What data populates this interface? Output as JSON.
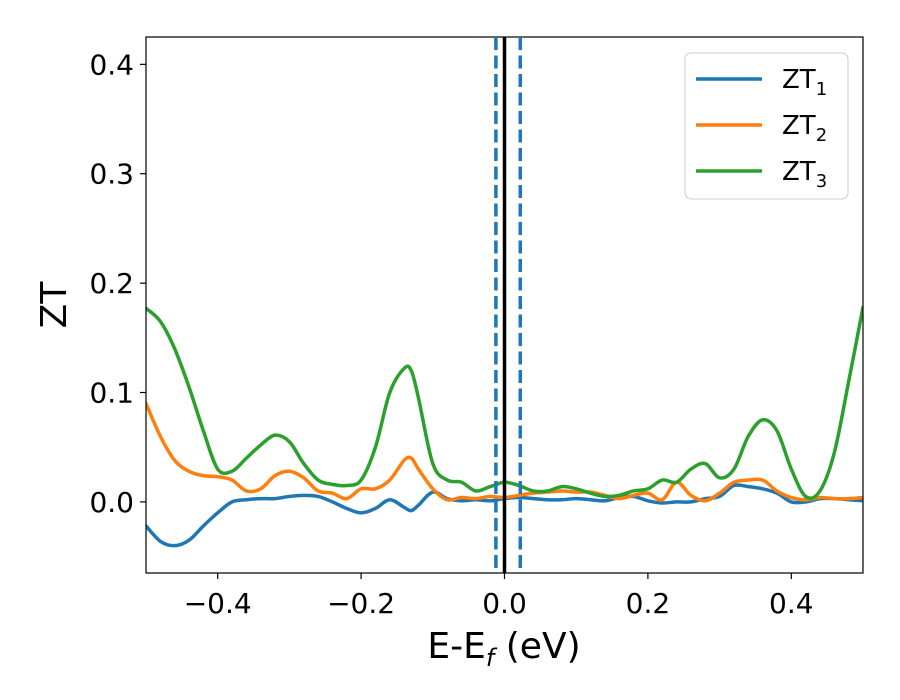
{
  "chart_data": {
    "type": "line",
    "xlabel": "E-E",
    "xlabel_sub": "f",
    "xlabel_unit": " (eV)",
    "ylabel": "ZT",
    "xlim": [
      -0.5,
      0.5
    ],
    "ylim": [
      -0.065,
      0.425
    ],
    "xticks": [
      -0.4,
      -0.2,
      0.0,
      0.2,
      0.4
    ],
    "xtick_labels": [
      "−0.4",
      "−0.2",
      "0.0",
      "0.2",
      "0.4"
    ],
    "yticks": [
      0.0,
      0.1,
      0.2,
      0.3,
      0.4
    ],
    "ytick_labels": [
      "0.0",
      "0.1",
      "0.2",
      "0.3",
      "0.4"
    ],
    "grid": false,
    "legend_position": "top-right",
    "vlines": [
      {
        "x": 0.0,
        "style": "solid",
        "color": "#000000"
      },
      {
        "x": -0.012,
        "style": "dashed",
        "color": "#1f77b4"
      },
      {
        "x": 0.022,
        "style": "dashed",
        "color": "#1f77b4"
      }
    ],
    "series": [
      {
        "name": "ZT",
        "name_sub": "1",
        "color": "#1f77b4",
        "x": [
          -0.5,
          -0.48,
          -0.46,
          -0.44,
          -0.42,
          -0.4,
          -0.38,
          -0.36,
          -0.34,
          -0.32,
          -0.3,
          -0.28,
          -0.26,
          -0.24,
          -0.22,
          -0.2,
          -0.18,
          -0.16,
          -0.14,
          -0.13,
          -0.12,
          -0.1,
          -0.08,
          -0.06,
          -0.04,
          -0.02,
          0.0,
          0.02,
          0.04,
          0.06,
          0.08,
          0.1,
          0.12,
          0.14,
          0.16,
          0.18,
          0.2,
          0.22,
          0.24,
          0.26,
          0.28,
          0.3,
          0.32,
          0.34,
          0.36,
          0.38,
          0.4,
          0.42,
          0.44,
          0.46,
          0.48,
          0.5
        ],
        "y": [
          -0.022,
          -0.036,
          -0.04,
          -0.035,
          -0.022,
          -0.01,
          0.0,
          0.002,
          0.003,
          0.003,
          0.005,
          0.006,
          0.005,
          0.0,
          -0.006,
          -0.01,
          -0.006,
          0.002,
          -0.005,
          -0.008,
          -0.003,
          0.009,
          0.003,
          0.001,
          0.002,
          0.001,
          0.003,
          0.004,
          0.003,
          0.002,
          0.002,
          0.003,
          0.002,
          0.001,
          0.004,
          0.005,
          0.001,
          -0.001,
          0.0,
          0.0,
          0.003,
          0.005,
          0.015,
          0.014,
          0.012,
          0.008,
          0.0,
          0.0,
          0.003,
          0.003,
          0.002,
          0.001
        ]
      },
      {
        "name": "ZT",
        "name_sub": "2",
        "color": "#ff7f0e",
        "x": [
          -0.5,
          -0.48,
          -0.46,
          -0.44,
          -0.42,
          -0.4,
          -0.38,
          -0.36,
          -0.34,
          -0.32,
          -0.3,
          -0.28,
          -0.26,
          -0.24,
          -0.22,
          -0.2,
          -0.18,
          -0.16,
          -0.14,
          -0.13,
          -0.12,
          -0.1,
          -0.08,
          -0.06,
          -0.04,
          -0.02,
          0.0,
          0.02,
          0.04,
          0.06,
          0.08,
          0.1,
          0.12,
          0.14,
          0.16,
          0.18,
          0.2,
          0.22,
          0.24,
          0.26,
          0.28,
          0.3,
          0.32,
          0.34,
          0.36,
          0.38,
          0.4,
          0.42,
          0.44,
          0.46,
          0.48,
          0.5
        ],
        "y": [
          0.09,
          0.06,
          0.038,
          0.028,
          0.024,
          0.023,
          0.02,
          0.01,
          0.012,
          0.024,
          0.028,
          0.022,
          0.01,
          0.008,
          0.003,
          0.012,
          0.012,
          0.02,
          0.038,
          0.04,
          0.03,
          0.012,
          0.002,
          0.004,
          0.003,
          0.005,
          0.004,
          0.006,
          0.008,
          0.009,
          0.01,
          0.009,
          0.009,
          0.006,
          0.003,
          0.006,
          0.008,
          0.002,
          0.018,
          0.006,
          0.001,
          0.008,
          0.018,
          0.02,
          0.02,
          0.01,
          0.004,
          0.002,
          0.004,
          0.003,
          0.003,
          0.004
        ]
      },
      {
        "name": "ZT",
        "name_sub": "3",
        "color": "#2ca02c",
        "x": [
          -0.5,
          -0.48,
          -0.46,
          -0.44,
          -0.42,
          -0.4,
          -0.38,
          -0.36,
          -0.34,
          -0.32,
          -0.3,
          -0.28,
          -0.26,
          -0.24,
          -0.22,
          -0.2,
          -0.18,
          -0.16,
          -0.14,
          -0.13,
          -0.12,
          -0.1,
          -0.08,
          -0.06,
          -0.04,
          -0.02,
          0.0,
          0.02,
          0.04,
          0.06,
          0.08,
          0.1,
          0.12,
          0.14,
          0.16,
          0.18,
          0.2,
          0.22,
          0.24,
          0.26,
          0.28,
          0.3,
          0.32,
          0.34,
          0.36,
          0.38,
          0.4,
          0.42,
          0.44,
          0.46,
          0.48,
          0.5
        ],
        "y": [
          0.177,
          0.165,
          0.14,
          0.105,
          0.065,
          0.03,
          0.028,
          0.04,
          0.052,
          0.061,
          0.055,
          0.035,
          0.02,
          0.016,
          0.015,
          0.02,
          0.05,
          0.1,
          0.122,
          0.12,
          0.095,
          0.035,
          0.02,
          0.018,
          0.01,
          0.014,
          0.018,
          0.015,
          0.01,
          0.01,
          0.014,
          0.012,
          0.008,
          0.005,
          0.006,
          0.01,
          0.012,
          0.02,
          0.018,
          0.03,
          0.035,
          0.022,
          0.03,
          0.06,
          0.075,
          0.065,
          0.03,
          0.005,
          0.01,
          0.045,
          0.11,
          0.178
        ]
      }
    ]
  }
}
